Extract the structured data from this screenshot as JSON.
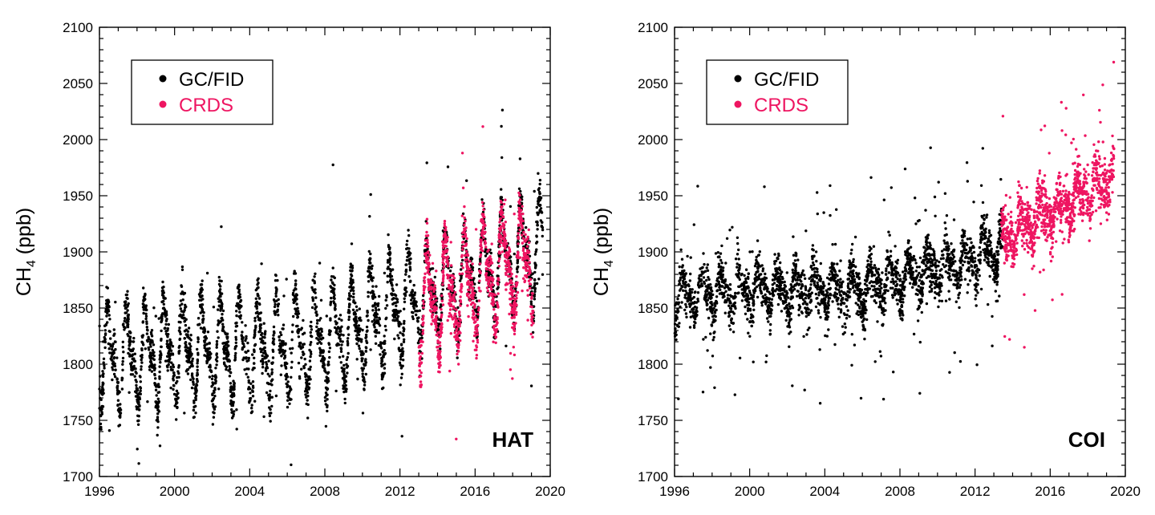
{
  "colors": {
    "gcfid": "#000000",
    "crds": "#ee1561",
    "axes": "#000000",
    "background": "#ffffff"
  },
  "chart_data": [
    {
      "type": "scatter",
      "panel_label": "HAT",
      "ylabel": {
        "base": "CH",
        "sub": "4",
        "rest": " (ppb)"
      },
      "xlim": [
        1996,
        2020
      ],
      "ylim": [
        1700,
        2100
      ],
      "xticks": [
        "1996",
        "2000",
        "2004",
        "2008",
        "2012",
        "2016",
        "2020"
      ],
      "yticks": [
        "1700",
        "1750",
        "1800",
        "1850",
        "1900",
        "1950",
        "2000",
        "2050",
        "2100"
      ],
      "legend": {
        "position": "top-left",
        "entries": [
          "GC/FID",
          "CRDS"
        ]
      },
      "series": [
        {
          "name": "GC/FID",
          "color": "#000000",
          "range": [
            1996.0,
            2019.6
          ],
          "trend": [
            [
              1996,
              1805
            ],
            [
              2000,
              1812
            ],
            [
              2006,
              1815
            ],
            [
              2008,
              1822
            ],
            [
              2012,
              1850
            ],
            [
              2016,
              1880
            ],
            [
              2019.6,
              1905
            ]
          ],
          "seasonal_amplitude": 55,
          "noise": 10,
          "outlier_rate": 0.02,
          "points_per_year": 140
        },
        {
          "name": "CRDS",
          "color": "#ee1561",
          "range": [
            2013.0,
            2019.1
          ],
          "trend": [
            [
              2013,
              1848
            ],
            [
              2016,
              1875
            ],
            [
              2019.1,
              1895
            ]
          ],
          "seasonal_amplitude": 58,
          "noise": 12,
          "outlier_rate": 0.02,
          "points_per_year": 170
        }
      ]
    },
    {
      "type": "scatter",
      "panel_label": "COI",
      "ylabel": {
        "base": "CH",
        "sub": "4",
        "rest": " (ppb)"
      },
      "xlim": [
        1996,
        2020
      ],
      "ylim": [
        1700,
        2100
      ],
      "xticks": [
        "1996",
        "2000",
        "2004",
        "2008",
        "2012",
        "2016",
        "2020"
      ],
      "yticks": [
        "1700",
        "1750",
        "1800",
        "1850",
        "1900",
        "1950",
        "2000",
        "2050",
        "2100"
      ],
      "legend": {
        "position": "top-left",
        "entries": [
          "GC/FID",
          "CRDS"
        ]
      },
      "series": [
        {
          "name": "GC/FID",
          "color": "#000000",
          "range": [
            1996.0,
            2013.5
          ],
          "trend": [
            [
              1996,
              1862
            ],
            [
              2000,
              1865
            ],
            [
              2006,
              1866
            ],
            [
              2008,
              1875
            ],
            [
              2012,
              1893
            ],
            [
              2013.5,
              1905
            ]
          ],
          "seasonal_amplitude": 22,
          "noise": 10,
          "outlier_rate": 0.04,
          "points_per_year": 140
        },
        {
          "name": "CRDS",
          "color": "#ee1561",
          "range": [
            2013.4,
            2019.4
          ],
          "trend": [
            [
              2013.4,
              1910
            ],
            [
              2016,
              1935
            ],
            [
              2019.4,
              1968
            ]
          ],
          "seasonal_amplitude": 18,
          "noise": 12,
          "outlier_rate": 0.03,
          "points_per_year": 170
        }
      ]
    }
  ]
}
